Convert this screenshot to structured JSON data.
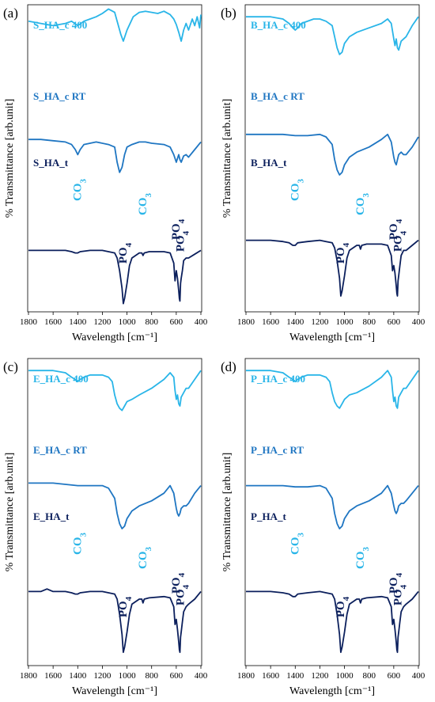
{
  "colors": {
    "c400": "#29b5e8",
    "cRT": "#1f76c2",
    "t": "#0b1f5c",
    "co3": "#29b5e8",
    "po4": "#0b1f5c",
    "axis": "#000000"
  },
  "common": {
    "y_axis_label": "% Transmittance [arb.unit]",
    "x_axis_label": "Wavelength [cm⁻¹]",
    "x_ticks": [
      "1800",
      "1600",
      "1400",
      "1200",
      "1000",
      "800",
      "600",
      "400"
    ]
  },
  "chart_data": [
    {
      "panel": "(a)",
      "type": "line",
      "xlabel": "Wavelength [cm⁻¹]",
      "ylabel": "% Transmittance [arb.unit]",
      "xlim": [
        1800,
        400
      ],
      "x_reversed": true,
      "series": [
        {
          "name": "S_HA_c 400",
          "color": "#29b5e8",
          "offset": 0,
          "x": [
            1800,
            1700,
            1600,
            1500,
            1450,
            1400,
            1350,
            1300,
            1250,
            1200,
            1150,
            1100,
            1080,
            1050,
            1030,
            1000,
            950,
            900,
            850,
            800,
            750,
            700,
            650,
            620,
            600,
            580,
            560,
            540,
            520,
            500,
            470,
            450,
            430,
            410,
            400
          ],
          "y": [
            88,
            86,
            84,
            86,
            88,
            84,
            88,
            90,
            92,
            95,
            99,
            96,
            88,
            76,
            70,
            80,
            92,
            96,
            97,
            96,
            95,
            97,
            94,
            90,
            85,
            78,
            70,
            80,
            86,
            80,
            90,
            84,
            92,
            82,
            94
          ]
        },
        {
          "name": "S_HA_c RT",
          "color": "#1f76c2",
          "offset": 0,
          "x": [
            1800,
            1700,
            1600,
            1500,
            1450,
            1420,
            1400,
            1380,
            1350,
            1250,
            1150,
            1100,
            1080,
            1060,
            1040,
            1020,
            1000,
            960,
            900,
            850,
            800,
            700,
            650,
            620,
            600,
            590,
            580,
            570,
            560,
            540,
            520,
            500,
            450,
            400
          ],
          "y": [
            68,
            68,
            67,
            66,
            64,
            60,
            56,
            60,
            64,
            66,
            64,
            62,
            50,
            42,
            46,
            56,
            62,
            64,
            66,
            66,
            65,
            64,
            62,
            56,
            50,
            53,
            56,
            52,
            50,
            55,
            56,
            54,
            60,
            66
          ]
        },
        {
          "name": "S_HA_t",
          "color": "#0b1f5c",
          "offset": 0,
          "x": [
            1800,
            1700,
            1600,
            1500,
            1450,
            1420,
            1400,
            1380,
            1300,
            1200,
            1150,
            1100,
            1080,
            1060,
            1040,
            1030,
            1020,
            1000,
            980,
            960,
            900,
            880,
            870,
            860,
            820,
            700,
            650,
            620,
            610,
            600,
            590,
            580,
            575,
            570,
            565,
            560,
            550,
            540,
            520,
            500,
            450,
            400
          ],
          "y": [
            46,
            46,
            46,
            46,
            45,
            44,
            44,
            45,
            46,
            46,
            45,
            44,
            40,
            30,
            16,
            4,
            8,
            20,
            34,
            40,
            44,
            44,
            42,
            44,
            45,
            45,
            44,
            36,
            22,
            30,
            24,
            14,
            8,
            6,
            20,
            24,
            30,
            38,
            40,
            40,
            43,
            46
          ]
        }
      ],
      "annotations": [
        {
          "text": "CO3",
          "x": 1400,
          "kind": "CO3"
        },
        {
          "text": "CO3",
          "x": 870,
          "kind": "CO3"
        },
        {
          "text": "PO4",
          "x": 1030,
          "kind": "PO4"
        },
        {
          "text": "PO4",
          "x": 600,
          "kind": "PO4"
        },
        {
          "text": "PO4",
          "x": 565,
          "kind": "PO4"
        }
      ]
    },
    {
      "panel": "(b)",
      "type": "line",
      "xlabel": "Wavelength [cm⁻¹]",
      "ylabel": "% Transmittance [arb.unit]",
      "xlim": [
        1800,
        400
      ],
      "x_reversed": true,
      "series": [
        {
          "name": "B_HA_c 400",
          "color": "#29b5e8",
          "offset": 0,
          "x": [
            1800,
            1600,
            1500,
            1450,
            1420,
            1400,
            1380,
            1350,
            1250,
            1200,
            1150,
            1100,
            1080,
            1060,
            1040,
            1020,
            1000,
            960,
            900,
            800,
            700,
            650,
            620,
            600,
            590,
            580,
            570,
            560,
            540,
            520,
            500,
            450,
            400
          ],
          "y": [
            92,
            92,
            90,
            86,
            82,
            80,
            82,
            86,
            90,
            90,
            88,
            84,
            74,
            64,
            58,
            60,
            68,
            74,
            78,
            82,
            86,
            90,
            86,
            72,
            66,
            72,
            64,
            62,
            70,
            72,
            74,
            84,
            92
          ]
        },
        {
          "name": "B_HA_c RT",
          "color": "#1f76c2",
          "offset": 0,
          "x": [
            1800,
            1600,
            1500,
            1400,
            1300,
            1200,
            1150,
            1100,
            1080,
            1060,
            1040,
            1020,
            1000,
            960,
            900,
            800,
            700,
            650,
            620,
            600,
            590,
            580,
            570,
            560,
            540,
            520,
            500,
            450,
            400
          ],
          "y": [
            72,
            72,
            72,
            71,
            71,
            72,
            70,
            64,
            52,
            44,
            40,
            42,
            48,
            54,
            58,
            62,
            68,
            72,
            66,
            54,
            50,
            48,
            52,
            56,
            58,
            56,
            56,
            62,
            70
          ]
        },
        {
          "name": "B_HA_t",
          "color": "#0b1f5c",
          "offset": 0,
          "x": [
            1800,
            1700,
            1600,
            1500,
            1450,
            1420,
            1400,
            1380,
            1300,
            1200,
            1150,
            1100,
            1080,
            1060,
            1040,
            1030,
            1020,
            1000,
            980,
            960,
            900,
            880,
            870,
            860,
            820,
            700,
            650,
            620,
            610,
            600,
            590,
            580,
            575,
            570,
            565,
            560,
            550,
            540,
            520,
            500,
            450,
            400
          ],
          "y": [
            54,
            54,
            54,
            53,
            52,
            50,
            50,
            52,
            53,
            54,
            53,
            52,
            48,
            38,
            24,
            10,
            14,
            26,
            40,
            46,
            50,
            50,
            47,
            50,
            51,
            51,
            50,
            42,
            30,
            34,
            28,
            18,
            12,
            10,
            22,
            26,
            34,
            42,
            46,
            46,
            50,
            54
          ]
        }
      ],
      "annotations": [
        {
          "text": "CO3",
          "x": 1400,
          "kind": "CO3"
        },
        {
          "text": "CO3",
          "x": 870,
          "kind": "CO3"
        },
        {
          "text": "PO4",
          "x": 1030,
          "kind": "PO4"
        },
        {
          "text": "PO4",
          "x": 600,
          "kind": "PO4"
        },
        {
          "text": "PO4",
          "x": 565,
          "kind": "PO4"
        }
      ]
    },
    {
      "panel": "(c)",
      "type": "line",
      "xlabel": "Wavelength [cm⁻¹]",
      "ylabel": "% Transmittance [arb.unit]",
      "xlim": [
        1800,
        400
      ],
      "x_reversed": true,
      "series": [
        {
          "name": "E_HA_c 400",
          "color": "#29b5e8",
          "offset": 0,
          "x": [
            1800,
            1600,
            1500,
            1450,
            1420,
            1400,
            1380,
            1350,
            1300,
            1250,
            1200,
            1150,
            1120,
            1100,
            1080,
            1060,
            1040,
            1020,
            1000,
            960,
            900,
            800,
            700,
            650,
            620,
            610,
            600,
            590,
            580,
            570,
            560,
            540,
            520,
            500,
            450,
            400
          ],
          "y": [
            92,
            92,
            90,
            86,
            84,
            82,
            84,
            86,
            88,
            88,
            88,
            86,
            82,
            70,
            62,
            58,
            56,
            60,
            64,
            66,
            70,
            76,
            84,
            90,
            86,
            74,
            66,
            70,
            62,
            60,
            68,
            72,
            76,
            76,
            84,
            92
          ]
        },
        {
          "name": "E_HA_c RT",
          "color": "#1f76c2",
          "offset": 0,
          "x": [
            1800,
            1600,
            1500,
            1400,
            1300,
            1200,
            1150,
            1100,
            1080,
            1060,
            1040,
            1020,
            1000,
            960,
            900,
            800,
            700,
            650,
            620,
            600,
            590,
            580,
            570,
            560,
            540,
            520,
            500,
            450,
            400
          ],
          "y": [
            76,
            76,
            75,
            74,
            74,
            74,
            72,
            64,
            52,
            44,
            40,
            42,
            48,
            54,
            58,
            62,
            68,
            74,
            68,
            56,
            52,
            50,
            52,
            56,
            58,
            58,
            60,
            68,
            74
          ]
        },
        {
          "name": "E_HA_t",
          "color": "#0b1f5c",
          "offset": 0,
          "x": [
            1800,
            1700,
            1650,
            1600,
            1500,
            1450,
            1420,
            1400,
            1380,
            1300,
            1200,
            1150,
            1100,
            1080,
            1060,
            1040,
            1030,
            1020,
            1000,
            980,
            960,
            900,
            880,
            870,
            860,
            820,
            700,
            650,
            620,
            610,
            600,
            590,
            580,
            575,
            570,
            565,
            560,
            550,
            540,
            520,
            500,
            450,
            400
          ],
          "y": [
            56,
            56,
            58,
            56,
            56,
            55,
            54,
            54,
            55,
            56,
            56,
            55,
            54,
            50,
            38,
            22,
            8,
            12,
            24,
            38,
            46,
            50,
            50,
            47,
            50,
            51,
            52,
            51,
            44,
            30,
            34,
            26,
            16,
            10,
            8,
            20,
            24,
            32,
            40,
            44,
            46,
            50,
            56
          ]
        }
      ],
      "annotations": [
        {
          "text": "CO3",
          "x": 1400,
          "kind": "CO3"
        },
        {
          "text": "CO3",
          "x": 870,
          "kind": "CO3"
        },
        {
          "text": "PO4",
          "x": 1030,
          "kind": "PO4"
        },
        {
          "text": "PO4",
          "x": 600,
          "kind": "PO4"
        },
        {
          "text": "PO4",
          "x": 565,
          "kind": "PO4"
        }
      ]
    },
    {
      "panel": "(d)",
      "type": "line",
      "xlabel": "Wavelength [cm⁻¹]",
      "ylabel": "% Transmittance [arb.unit]",
      "xlim": [
        1800,
        400
      ],
      "x_reversed": true,
      "series": [
        {
          "name": "P_HA_c 400",
          "color": "#29b5e8",
          "offset": 0,
          "x": [
            1800,
            1600,
            1500,
            1450,
            1420,
            1400,
            1380,
            1350,
            1300,
            1250,
            1200,
            1150,
            1120,
            1100,
            1080,
            1060,
            1040,
            1020,
            1000,
            960,
            900,
            800,
            700,
            650,
            620,
            610,
            600,
            590,
            580,
            570,
            560,
            540,
            520,
            500,
            450,
            400
          ],
          "y": [
            92,
            92,
            90,
            86,
            84,
            82,
            84,
            86,
            88,
            88,
            88,
            86,
            82,
            72,
            64,
            60,
            58,
            62,
            66,
            70,
            72,
            78,
            86,
            92,
            86,
            74,
            64,
            68,
            60,
            58,
            68,
            72,
            76,
            76,
            84,
            92
          ]
        },
        {
          "name": "P_HA_c RT",
          "color": "#1f76c2",
          "offset": 0,
          "x": [
            1800,
            1600,
            1500,
            1400,
            1300,
            1200,
            1150,
            1100,
            1080,
            1060,
            1040,
            1020,
            1000,
            960,
            900,
            800,
            700,
            650,
            620,
            600,
            590,
            580,
            570,
            560,
            540,
            520,
            500,
            450,
            400
          ],
          "y": [
            74,
            74,
            74,
            73,
            73,
            74,
            72,
            64,
            52,
            44,
            40,
            42,
            48,
            54,
            58,
            62,
            68,
            74,
            68,
            58,
            54,
            52,
            54,
            58,
            60,
            60,
            62,
            68,
            74
          ]
        },
        {
          "name": "P_HA_t",
          "color": "#0b1f5c",
          "offset": 0,
          "x": [
            1800,
            1700,
            1600,
            1500,
            1450,
            1420,
            1400,
            1380,
            1300,
            1200,
            1150,
            1100,
            1080,
            1060,
            1040,
            1030,
            1020,
            1000,
            980,
            960,
            900,
            880,
            870,
            860,
            820,
            700,
            650,
            620,
            610,
            600,
            590,
            580,
            575,
            570,
            565,
            560,
            550,
            540,
            520,
            500,
            450,
            400
          ],
          "y": [
            56,
            56,
            56,
            55,
            54,
            52,
            52,
            54,
            55,
            56,
            55,
            54,
            50,
            38,
            22,
            8,
            12,
            24,
            38,
            46,
            50,
            50,
            47,
            50,
            51,
            52,
            51,
            44,
            30,
            34,
            26,
            16,
            10,
            8,
            20,
            24,
            32,
            40,
            44,
            46,
            50,
            56
          ]
        }
      ],
      "annotations": [
        {
          "text": "CO3",
          "x": 1400,
          "kind": "CO3"
        },
        {
          "text": "CO3",
          "x": 870,
          "kind": "CO3"
        },
        {
          "text": "PO4",
          "x": 1030,
          "kind": "PO4"
        },
        {
          "text": "PO4",
          "x": 600,
          "kind": "PO4"
        },
        {
          "text": "PO4",
          "x": 565,
          "kind": "PO4"
        }
      ]
    }
  ]
}
